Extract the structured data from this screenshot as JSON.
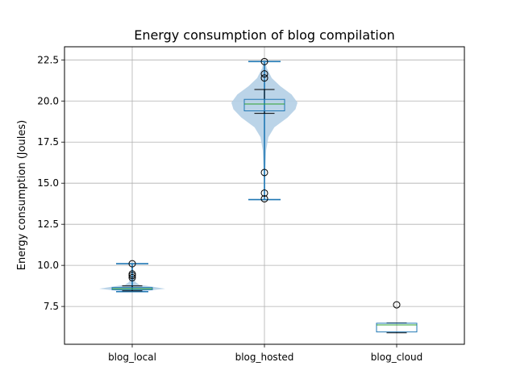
{
  "chart_data": {
    "type": "violin-box",
    "title": "Energy consumption of blog compilation",
    "xlabel": "",
    "ylabel": "Energy consumption (Joules)",
    "ylim": [
      5.2,
      23.3
    ],
    "yticks": [
      7.5,
      10.0,
      12.5,
      15.0,
      17.5,
      20.0,
      22.5
    ],
    "ytick_labels": [
      "7.5",
      "10.0",
      "12.5",
      "15.0",
      "17.5",
      "20.0",
      "22.5"
    ],
    "grid": true,
    "categories": [
      "blog_local",
      "blog_hosted",
      "blog_cloud"
    ],
    "box": [
      {
        "name": "blog_local",
        "whislo": 8.45,
        "q1": 8.52,
        "med": 8.58,
        "q3": 8.65,
        "whishi": 8.75,
        "fliers": [
          9.25,
          9.38,
          9.48,
          10.1
        ]
      },
      {
        "name": "blog_hosted",
        "whislo": 19.25,
        "q1": 19.4,
        "med": 19.82,
        "q3": 20.1,
        "whishi": 20.7,
        "fliers": [
          14.05,
          14.4,
          15.65,
          21.4,
          21.65,
          22.4
        ]
      },
      {
        "name": "blog_cloud",
        "whislo": 5.9,
        "q1": 5.95,
        "med": 6.38,
        "q3": 6.48,
        "whishi": 6.5,
        "fliers": [
          7.6
        ]
      }
    ],
    "violin": [
      {
        "name": "blog_local",
        "min": 8.4,
        "max": 10.1,
        "profile": [
          [
            8.4,
            0.08
          ],
          [
            8.48,
            0.55
          ],
          [
            8.58,
            1.0
          ],
          [
            8.7,
            0.62
          ],
          [
            8.82,
            0.22
          ],
          [
            8.98,
            0.1
          ],
          [
            9.2,
            0.06
          ],
          [
            9.4,
            0.05
          ],
          [
            9.7,
            0.03
          ],
          [
            10.1,
            0.015
          ]
        ]
      },
      {
        "name": "blog_hosted",
        "min": 14.0,
        "max": 22.4,
        "profile": [
          [
            14.0,
            0.015
          ],
          [
            15.0,
            0.02
          ],
          [
            16.0,
            0.03
          ],
          [
            17.0,
            0.05
          ],
          [
            17.8,
            0.12
          ],
          [
            18.4,
            0.3
          ],
          [
            19.0,
            0.7
          ],
          [
            19.5,
            0.94
          ],
          [
            19.9,
            1.0
          ],
          [
            20.4,
            0.82
          ],
          [
            20.9,
            0.48
          ],
          [
            21.4,
            0.22
          ],
          [
            22.0,
            0.07
          ],
          [
            22.4,
            0.03
          ]
        ]
      }
    ],
    "violin_extrema": [
      {
        "name": "blog_local",
        "min": 8.4,
        "max": 10.1
      },
      {
        "name": "blog_hosted",
        "min": 14.0,
        "max": 22.4
      }
    ],
    "colors": {
      "box": "#1f77b4",
      "median": "#2ca02c",
      "violin_fill": "#b4cfe6",
      "violin_line": "#1f77b4",
      "grid": "#b0b0b0",
      "whisker": "#000000"
    }
  }
}
